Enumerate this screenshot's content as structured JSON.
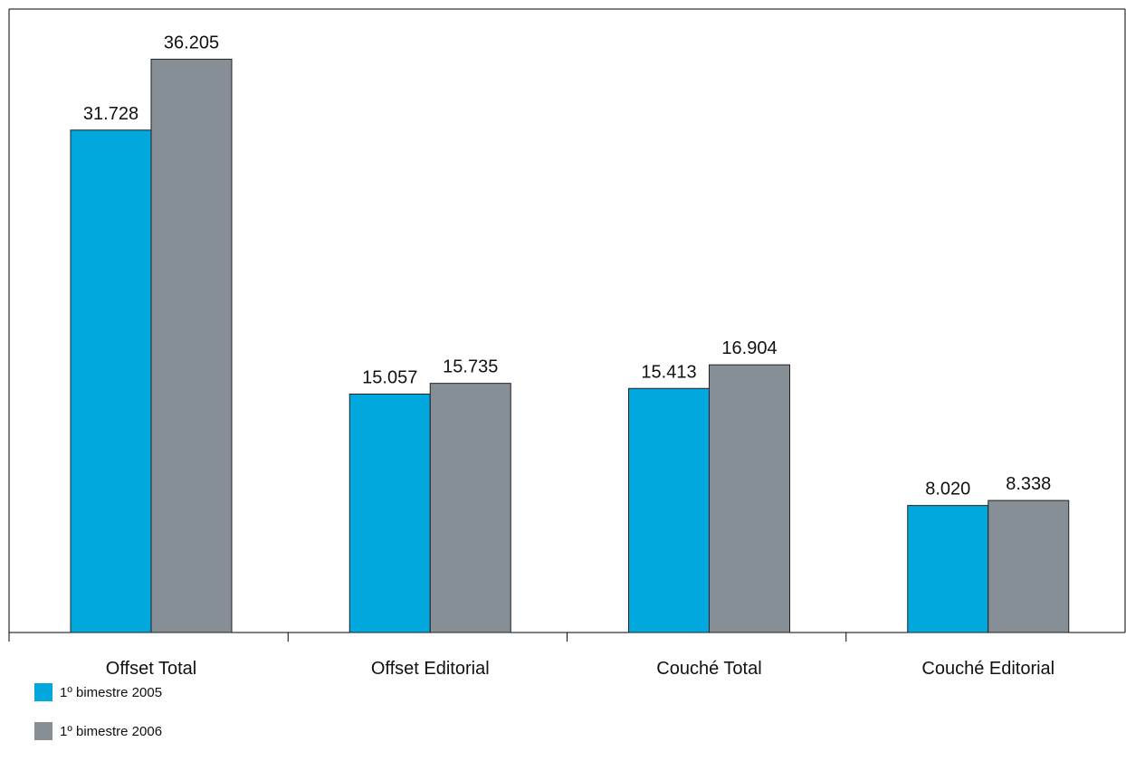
{
  "chart_data": {
    "type": "bar",
    "title": "",
    "xlabel": "",
    "ylabel": "",
    "categories": [
      "Offset Total",
      "Offset Editorial",
      "Couché Total",
      "Couché Editorial"
    ],
    "series": [
      {
        "name": "1º bimestre 2005",
        "values": [
          31728,
          15057,
          15413,
          8020
        ],
        "labels": [
          "31.728",
          "15.057",
          "15.413",
          "8.020"
        ],
        "color": "#00a8de"
      },
      {
        "name": "1º bimestre 2006",
        "values": [
          36205,
          15735,
          16904,
          8338
        ],
        "labels": [
          "36.205",
          "15.735",
          "16.904",
          "8.338"
        ],
        "color": "#878f96"
      }
    ],
    "ylim": [
      0,
      40000
    ],
    "grid": false,
    "legend_position": "bottom-left"
  }
}
